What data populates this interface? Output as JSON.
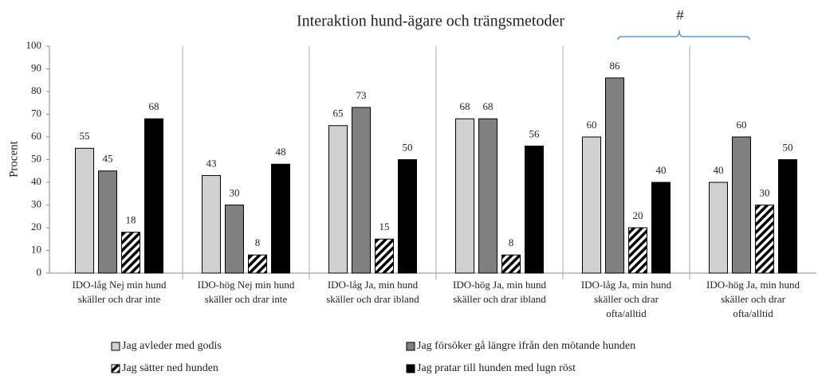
{
  "chart_data": {
    "type": "bar",
    "title": "Interaktion hund-ägare och trängsmetoder",
    "ylabel": "Procent",
    "annotation": "#",
    "categories": [
      [
        "IDO-låg Nej min hund",
        "skäller och drar inte"
      ],
      [
        "IDO-hög Nej min hund",
        "skäller och drar inte"
      ],
      [
        "IDO-låg Ja, min hund",
        "skäller och drar ibland"
      ],
      [
        "IDO-hög Ja, min hund",
        "skäller och drar ibland"
      ],
      [
        "IDO-låg Ja, min hund",
        "skäller och drar",
        "ofta/alltid"
      ],
      [
        "IDO-hög Ja, min hund",
        "skäller och drar",
        "ofta/alltid"
      ]
    ],
    "series": [
      {
        "name": "Jag avleder med godis",
        "color": "#d0d0d0",
        "values": [
          55,
          43,
          65,
          68,
          60,
          40
        ]
      },
      {
        "name": "Jag försöker gå längre ifrån den mötande hunden",
        "color": "#808080",
        "values": [
          45,
          30,
          73,
          68,
          86,
          60
        ]
      },
      {
        "name": "Jag sätter ned hunden",
        "color": "#000000",
        "hatch": true,
        "values": [
          18,
          8,
          15,
          8,
          20,
          30
        ]
      },
      {
        "name": "Jag pratar till hunden med lugn röst",
        "color": "#000000",
        "values": [
          68,
          48,
          50,
          56,
          40,
          50
        ]
      }
    ],
    "ylim": [
      0,
      100
    ],
    "yticks": [
      0,
      10,
      20,
      30,
      40,
      50,
      60,
      70,
      80,
      90,
      100
    ]
  }
}
